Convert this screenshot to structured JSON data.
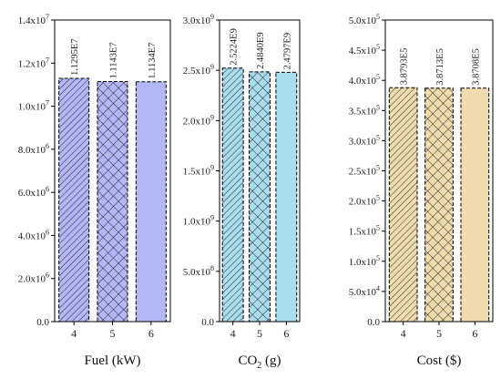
{
  "chart_data": [
    {
      "type": "bar",
      "categories": [
        "4",
        "5",
        "6"
      ],
      "values": [
        11295000,
        11143000,
        11134000
      ],
      "data_labels": [
        "1.1295E7",
        "1.1143E7",
        "1.1134E7"
      ],
      "xlabel": "Fuel (kW)",
      "xlabel_main": "Fuel (kW)",
      "xlabel_sub": "",
      "xlabel_tail": "",
      "ylim": [
        0,
        14000000
      ],
      "yticks": [
        {
          "value": 0,
          "mant": "0.0",
          "exp": ""
        },
        {
          "value": 2000000,
          "mant": "2.0x10",
          "exp": "6"
        },
        {
          "value": 4000000,
          "mant": "4.0x10",
          "exp": "6"
        },
        {
          "value": 6000000,
          "mant": "6.0x10",
          "exp": "6"
        },
        {
          "value": 8000000,
          "mant": "8.0x10",
          "exp": "6"
        },
        {
          "value": 10000000,
          "mant": "1.0x10",
          "exp": "7"
        },
        {
          "value": 12000000,
          "mant": "1.2x10",
          "exp": "7"
        },
        {
          "value": 14000000,
          "mant": "1.4x10",
          "exp": "7"
        }
      ],
      "fill_color": "#b3b7f5",
      "patterns": [
        "diag-dense",
        "crosshatch",
        "solid"
      ]
    },
    {
      "type": "bar",
      "categories": [
        "4",
        "5",
        "6"
      ],
      "values": [
        2522400000,
        2484000000,
        2479700000
      ],
      "data_labels": [
        "2.5224E9",
        "2.4840E9",
        "2.4797E9"
      ],
      "xlabel": "CO2 (g)",
      "xlabel_main": "CO",
      "xlabel_sub": "2",
      "xlabel_tail": " (g)",
      "ylim": [
        0,
        3000000000
      ],
      "yticks": [
        {
          "value": 0,
          "mant": "0.0",
          "exp": ""
        },
        {
          "value": 500000000,
          "mant": "5.0x10",
          "exp": "8"
        },
        {
          "value": 1000000000,
          "mant": "1.0x10",
          "exp": "9"
        },
        {
          "value": 1500000000,
          "mant": "1.5x10",
          "exp": "9"
        },
        {
          "value": 2000000000,
          "mant": "2.0x10",
          "exp": "9"
        },
        {
          "value": 2500000000,
          "mant": "2.5x10",
          "exp": "9"
        },
        {
          "value": 3000000000,
          "mant": "3.0x10",
          "exp": "9"
        }
      ],
      "fill_color": "#a9dcef",
      "patterns": [
        "diag-dense",
        "crosshatch",
        "solid"
      ]
    },
    {
      "type": "bar",
      "categories": [
        "4",
        "5",
        "6"
      ],
      "values": [
        387930,
        387130,
        387080
      ],
      "data_labels": [
        "3.8793E5",
        "3.8713E5",
        "3.8708E5"
      ],
      "xlabel": "Cost ($)",
      "xlabel_main": "Cost ($)",
      "xlabel_sub": "",
      "xlabel_tail": "",
      "ylim": [
        0,
        500000
      ],
      "yticks": [
        {
          "value": 0,
          "mant": "0.0",
          "exp": ""
        },
        {
          "value": 50000,
          "mant": "5.0x10",
          "exp": "4"
        },
        {
          "value": 100000,
          "mant": "1.0x10",
          "exp": "5"
        },
        {
          "value": 150000,
          "mant": "1.5x10",
          "exp": "5"
        },
        {
          "value": 200000,
          "mant": "2.0x10",
          "exp": "5"
        },
        {
          "value": 250000,
          "mant": "2.5x10",
          "exp": "5"
        },
        {
          "value": 300000,
          "mant": "3.0x10",
          "exp": "5"
        },
        {
          "value": 350000,
          "mant": "3.5x10",
          "exp": "5"
        },
        {
          "value": 400000,
          "mant": "4.0x10",
          "exp": "5"
        },
        {
          "value": 450000,
          "mant": "4.5x10",
          "exp": "5"
        },
        {
          "value": 500000,
          "mant": "5.0x10",
          "exp": "5"
        }
      ],
      "fill_color": "#efdcae",
      "patterns": [
        "diag-sparse",
        "crosshatch",
        "solid"
      ]
    }
  ]
}
